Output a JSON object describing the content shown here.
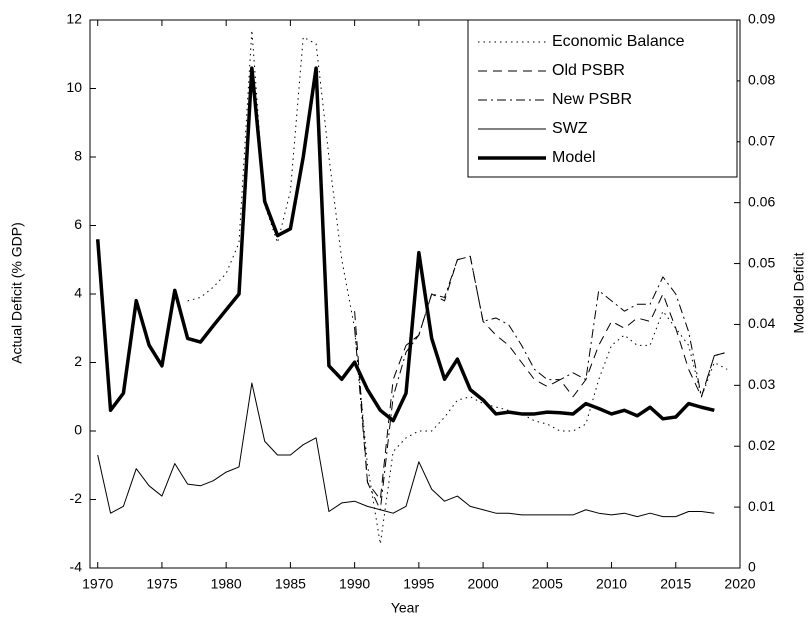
{
  "chart_data": {
    "type": "line",
    "xlabel": "Year",
    "ylabel": "Actual Deficit (% GDP)",
    "y2label": "Model Deficit",
    "xlim": [
      1969.4,
      2020
    ],
    "xticks": [
      1970,
      1975,
      1980,
      1985,
      1990,
      1995,
      2000,
      2005,
      2010,
      2015,
      2020
    ],
    "ylim": [
      -4,
      12
    ],
    "yticks": [
      -4,
      -2,
      0,
      2,
      4,
      6,
      8,
      10,
      12
    ],
    "y2lim": [
      0,
      0.09
    ],
    "y2ticks": [
      0,
      0.01,
      0.02,
      0.03,
      0.04,
      0.05,
      0.06,
      0.07,
      0.08,
      0.09
    ],
    "legend": "upper right",
    "series": [
      {
        "name": "Economic Balance",
        "color": "#000000",
        "style": "dotted",
        "width": 1,
        "x": [
          1977,
          1978,
          1979,
          1980,
          1981,
          1982,
          1983,
          1984,
          1985,
          1986,
          1987,
          1988,
          1989,
          1990,
          1991,
          1992,
          1993,
          1994,
          1995,
          1996,
          1997,
          1998,
          1999,
          2000,
          2001,
          2002,
          2003,
          2004,
          2005,
          2006,
          2007,
          2008,
          2009,
          2010,
          2011,
          2012,
          2013,
          2014,
          2015,
          2016,
          2017,
          2018,
          2019
        ],
        "values": [
          3.8,
          3.9,
          4.2,
          4.6,
          5.5,
          11.7,
          6.6,
          5.5,
          7.0,
          11.5,
          11.3,
          8.0,
          5.0,
          3.0,
          -1.0,
          -3.3,
          -0.6,
          -0.2,
          0.0,
          0.0,
          0.4,
          0.9,
          1.0,
          0.8,
          0.7,
          0.6,
          0.5,
          0.3,
          0.2,
          0.0,
          0.0,
          0.2,
          1.5,
          2.5,
          2.8,
          2.5,
          2.5,
          3.5,
          3.0,
          2.5,
          1.0,
          2.0,
          1.8
        ]
      },
      {
        "name": "Old PSBR",
        "color": "#000000",
        "style": "dashed",
        "width": 1,
        "x": [
          1990,
          1991,
          1992,
          1993,
          1994,
          1995,
          1996,
          1997,
          1998,
          1999,
          2000,
          2001,
          2002,
          2003,
          2004,
          2005,
          2006,
          2007,
          2008,
          2009,
          2010,
          2011,
          2012,
          2013,
          2014,
          2015,
          2016,
          2017,
          2018,
          2019
        ],
        "values": [
          3.5,
          -1.5,
          -2.0,
          1.5,
          2.5,
          2.8,
          4.0,
          3.8,
          5.0,
          5.1,
          3.2,
          2.8,
          2.5,
          2.0,
          1.5,
          1.3,
          1.5,
          1.0,
          1.5,
          2.5,
          3.2,
          3.0,
          3.3,
          3.2,
          4.0,
          3.0,
          1.8,
          1.0,
          2.2,
          2.3
        ]
      },
      {
        "name": "New PSBR",
        "color": "#000000",
        "style": "dashdot",
        "width": 1,
        "x": [
          1990,
          1991,
          1992,
          1993,
          1994,
          1995,
          1996,
          1997,
          1998,
          1999,
          2000,
          2001,
          2002,
          2003,
          2004,
          2005,
          2006,
          2007,
          2008,
          2009,
          2010,
          2011,
          2012,
          2013,
          2014,
          2015,
          2016,
          2017,
          2018,
          2019
        ],
        "values": [
          3.0,
          -1.5,
          -2.3,
          1.0,
          2.3,
          2.8,
          4.0,
          3.9,
          5.0,
          5.1,
          3.2,
          3.3,
          3.1,
          2.5,
          1.8,
          1.5,
          1.5,
          1.7,
          1.5,
          4.1,
          3.8,
          3.5,
          3.7,
          3.7,
          4.5,
          4.0,
          2.9,
          1.0,
          2.2,
          2.3
        ]
      },
      {
        "name": "SWZ",
        "color": "#000000",
        "style": "solid",
        "width": 1,
        "x": [
          1970,
          1971,
          1972,
          1973,
          1974,
          1975,
          1976,
          1977,
          1978,
          1979,
          1980,
          1981,
          1982,
          1983,
          1984,
          1985,
          1986,
          1987,
          1988,
          1989,
          1990,
          1991,
          1992,
          1993,
          1994,
          1995,
          1996,
          1997,
          1998,
          1999,
          2000,
          2001,
          2002,
          2003,
          2004,
          2005,
          2006,
          2007,
          2008,
          2009,
          2010,
          2011,
          2012,
          2013,
          2014,
          2015,
          2016,
          2017,
          2018
        ],
        "values": [
          -0.7,
          -2.4,
          -2.2,
          -1.1,
          -1.6,
          -1.9,
          -0.95,
          -1.55,
          -1.6,
          -1.45,
          -1.2,
          -1.05,
          1.4,
          -0.3,
          -0.7,
          -0.7,
          -0.4,
          -0.2,
          -2.35,
          -2.1,
          -2.05,
          -2.2,
          -2.3,
          -2.4,
          -2.2,
          -0.9,
          -1.7,
          -2.05,
          -1.9,
          -2.2,
          -2.3,
          -2.4,
          -2.4,
          -2.45,
          -2.45,
          -2.45,
          -2.45,
          -2.45,
          -2.3,
          -2.4,
          -2.45,
          -2.4,
          -2.5,
          -2.4,
          -2.5,
          -2.5,
          -2.35,
          -2.35,
          -2.4
        ]
      },
      {
        "name": "Model",
        "color": "#000000",
        "style": "solid",
        "width": 3.5,
        "axis": "y2",
        "x": [
          1970,
          1971,
          1972,
          1973,
          1974,
          1975,
          1976,
          1977,
          1978,
          1979,
          1980,
          1981,
          1982,
          1983,
          1984,
          1985,
          1986,
          1987,
          1988,
          1989,
          1990,
          1991,
          1992,
          1993,
          1994,
          1995,
          1996,
          1997,
          1998,
          1999,
          2000,
          2001,
          2002,
          2003,
          2004,
          2005,
          2006,
          2007,
          2008,
          2009,
          2010,
          2011,
          2012,
          2013,
          2014,
          2015,
          2016,
          2017,
          2018
        ],
        "values": [
          0.054,
          0.0259,
          0.0287,
          0.0439,
          0.0366,
          0.0332,
          0.0456,
          0.0377,
          0.0371,
          0.0398,
          0.0424,
          0.045,
          0.0821,
          0.0602,
          0.0546,
          0.0557,
          0.0675,
          0.0821,
          0.0332,
          0.031,
          0.0338,
          0.0293,
          0.0259,
          0.0242,
          0.0287,
          0.0518,
          0.0377,
          0.031,
          0.0343,
          0.0293,
          0.0276,
          0.0253,
          0.0256,
          0.0253,
          0.0253,
          0.0256,
          0.0255,
          0.0253,
          0.027,
          0.0262,
          0.0253,
          0.0259,
          0.025,
          0.0264,
          0.0245,
          0.0248,
          0.027,
          0.0264,
          0.0259
        ]
      }
    ]
  }
}
